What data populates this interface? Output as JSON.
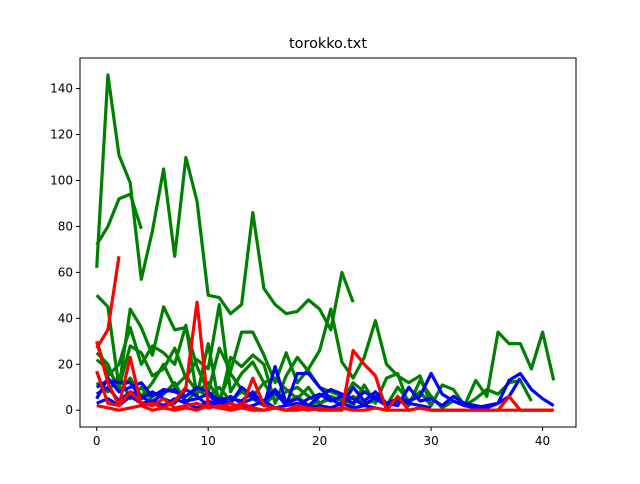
{
  "chart_data": {
    "type": "line",
    "title": "torokko.txt",
    "xlabel": "",
    "ylabel": "",
    "xlim": [
      -1.5,
      43
    ],
    "ylim": [
      -7.3,
      153.3
    ],
    "xticks": [
      0,
      10,
      20,
      30,
      40
    ],
    "yticks": [
      0,
      20,
      40,
      60,
      80,
      100,
      120,
      140
    ],
    "grid": false,
    "legend": "none",
    "colors": {
      "green": "#008000",
      "blue": "#0000ff",
      "red": "#ff0000"
    },
    "series": [
      {
        "color": "green",
        "x": [
          0,
          1,
          2,
          3,
          4
        ],
        "values": [
          72,
          80,
          92,
          94,
          79
        ]
      },
      {
        "color": "green",
        "x": [
          0,
          1,
          2,
          3,
          4,
          5,
          6,
          7,
          8,
          9,
          10,
          11,
          12,
          13,
          14,
          15,
          16,
          17,
          18,
          19,
          20,
          21,
          22,
          23
        ],
        "values": [
          62,
          146,
          111,
          99,
          57,
          78,
          105,
          67,
          110,
          91,
          50,
          49,
          42,
          46,
          86,
          53,
          46,
          42,
          43,
          48,
          44,
          35,
          60,
          47
        ]
      },
      {
        "color": "green",
        "x": [
          0,
          1,
          2,
          3,
          4,
          5,
          6,
          7,
          8,
          9,
          10,
          11,
          12,
          13,
          14,
          15,
          16,
          17,
          18,
          19,
          20,
          21,
          22,
          23,
          24,
          25,
          26,
          27,
          28,
          29,
          30,
          31,
          32,
          33,
          34,
          35,
          36,
          37,
          38,
          39,
          40,
          41
        ],
        "values": [
          50,
          45,
          10,
          44,
          36,
          24,
          45,
          35,
          36,
          19,
          8,
          27,
          17,
          34,
          34,
          24,
          12,
          25,
          12,
          18,
          26,
          44,
          21,
          14,
          23,
          39,
          20,
          15,
          12,
          15,
          2,
          11,
          9,
          2,
          13,
          6,
          34,
          29,
          29,
          18,
          34,
          13
        ]
      },
      {
        "color": "green",
        "x": [
          0,
          1,
          2,
          3,
          4,
          5,
          6,
          7,
          8,
          9,
          10,
          11,
          12,
          13,
          14,
          15,
          16,
          17,
          18,
          19,
          20,
          21,
          22,
          23,
          24,
          25,
          26,
          27,
          28,
          29,
          30,
          31,
          32,
          33,
          34,
          35,
          36,
          37,
          38,
          39
        ],
        "values": [
          30,
          15,
          20,
          36,
          20,
          28,
          25,
          20,
          37,
          6,
          29,
          2,
          23,
          19,
          24,
          20,
          3,
          15,
          23,
          17,
          10,
          8,
          6,
          2,
          11,
          3,
          14,
          16,
          2,
          13,
          6,
          1,
          4,
          2,
          5,
          9,
          7,
          12,
          13,
          4
        ]
      },
      {
        "color": "green",
        "x": [
          0,
          1,
          2,
          3,
          4,
          5,
          6,
          7,
          8,
          9,
          10,
          11,
          12,
          13,
          14,
          15,
          16,
          17,
          18,
          19,
          20,
          21,
          22,
          23,
          24,
          25,
          26,
          27,
          28,
          29,
          30
        ],
        "values": [
          22,
          18,
          10,
          28,
          25,
          15,
          18,
          27,
          14,
          22,
          18,
          46,
          8,
          16,
          21,
          12,
          14,
          9,
          5,
          10,
          3,
          6,
          4,
          12,
          8,
          6,
          2,
          10,
          4,
          8,
          2
        ]
      },
      {
        "color": "green",
        "x": [
          0,
          1,
          2,
          3,
          4,
          5,
          6,
          7,
          8,
          9,
          10,
          11,
          12,
          13,
          14,
          15,
          16,
          17,
          18,
          19,
          20,
          21,
          22,
          23,
          24,
          25
        ],
        "values": [
          25,
          20,
          8,
          14,
          6,
          12,
          20,
          10,
          15,
          8,
          12,
          5,
          16,
          9,
          6,
          12,
          4,
          8,
          10,
          6,
          3,
          5,
          2,
          6,
          3,
          4
        ]
      },
      {
        "color": "green",
        "x": [
          0,
          1,
          2,
          3,
          4,
          5,
          6,
          7,
          8,
          9,
          10,
          11,
          12,
          13,
          14,
          15,
          16,
          17,
          18,
          19,
          20
        ],
        "values": [
          12,
          8,
          15,
          5,
          10,
          4,
          7,
          12,
          3,
          9,
          6,
          10,
          4,
          8,
          5,
          2,
          7,
          3,
          6,
          2,
          4
        ]
      },
      {
        "color": "blue",
        "x": [
          0,
          1,
          2,
          3,
          4,
          5,
          6,
          7,
          8,
          9,
          10,
          11,
          12,
          13,
          14,
          15,
          16,
          17,
          18,
          19,
          20,
          21,
          22,
          23,
          24,
          25,
          26,
          27,
          28,
          29,
          30,
          31,
          32,
          33,
          34,
          35,
          36,
          37,
          38,
          39,
          40,
          41
        ],
        "values": [
          10,
          13,
          12,
          12,
          5,
          8,
          5,
          3,
          9,
          6,
          2,
          5,
          5,
          4,
          8,
          2,
          19,
          3,
          5,
          2,
          6,
          9,
          7,
          5,
          2,
          6,
          3,
          5,
          4,
          6,
          16,
          7,
          4,
          2,
          1,
          2,
          3,
          13,
          16,
          9,
          5,
          2
        ]
      },
      {
        "color": "blue",
        "x": [
          0,
          1,
          2,
          3,
          4,
          5,
          6,
          7,
          8,
          9,
          10,
          11,
          12,
          13,
          14,
          15,
          16,
          17,
          18,
          19,
          20,
          21,
          22,
          23,
          24,
          25,
          26,
          27,
          28,
          29,
          30,
          31,
          32,
          33,
          34,
          35,
          36,
          37,
          38
        ],
        "values": [
          5,
          14,
          8,
          10,
          12,
          6,
          9,
          8,
          6,
          10,
          8,
          4,
          3,
          10,
          6,
          4,
          8,
          2,
          16,
          16,
          10,
          5,
          2,
          10,
          4,
          8,
          3,
          2,
          10,
          4,
          5,
          2,
          6,
          3,
          2,
          1,
          3,
          6,
          14
        ]
      },
      {
        "color": "blue",
        "x": [
          0,
          1,
          2,
          3,
          4,
          5,
          6,
          7,
          8,
          9,
          10,
          11,
          12,
          13,
          14,
          15,
          16,
          17,
          18,
          19,
          20,
          21,
          22,
          23,
          24,
          25,
          26,
          27,
          28,
          29,
          30
        ],
        "values": [
          7,
          10,
          4,
          8,
          6,
          3,
          8,
          9,
          4,
          5,
          7,
          2,
          6,
          3,
          5,
          4,
          9,
          3,
          2,
          5,
          7,
          4,
          6,
          3,
          8,
          5,
          2,
          4,
          3,
          2,
          1
        ]
      },
      {
        "color": "blue",
        "x": [
          0,
          1,
          2,
          3,
          4,
          5,
          6,
          7,
          8,
          9,
          10,
          11,
          12,
          13,
          14,
          15,
          16,
          17,
          18,
          19,
          20,
          21,
          22,
          23,
          24,
          25
        ],
        "values": [
          3,
          5,
          2,
          6,
          3,
          4,
          2,
          5,
          3,
          1,
          4,
          2,
          3,
          1,
          2,
          4,
          1,
          2,
          3,
          1,
          2,
          1,
          3,
          1,
          2,
          1
        ]
      },
      {
        "color": "red",
        "x": [
          0,
          1,
          2
        ],
        "values": [
          27,
          35,
          67
        ]
      },
      {
        "color": "red",
        "x": [
          0,
          1,
          2,
          3,
          4,
          5,
          6,
          7,
          8,
          9,
          10,
          11,
          12,
          13,
          14,
          15,
          16,
          17,
          18,
          19,
          20,
          21,
          22,
          23,
          24,
          25,
          26,
          27,
          28,
          29,
          30,
          31,
          32,
          33,
          34,
          35,
          36,
          37,
          38,
          39,
          40,
          41
        ],
        "values": [
          17,
          3,
          2,
          23,
          2,
          3,
          1,
          4,
          10,
          47,
          2,
          1,
          3,
          1,
          14,
          2,
          1,
          0,
          1,
          0,
          1,
          0,
          0,
          26,
          20,
          15,
          0,
          6,
          0,
          1,
          0,
          0,
          0,
          0,
          0,
          0,
          0,
          6,
          0,
          0,
          0,
          0
        ]
      },
      {
        "color": "red",
        "x": [
          0,
          1,
          2,
          3,
          4,
          5,
          6,
          7,
          8,
          9,
          10,
          11,
          12,
          13,
          14,
          15,
          16,
          17,
          18,
          19,
          20
        ],
        "values": [
          30,
          12,
          2,
          8,
          3,
          2,
          5,
          1,
          2,
          3,
          1,
          2,
          1,
          3,
          1,
          0,
          1,
          0,
          2,
          1,
          0
        ]
      },
      {
        "color": "red",
        "x": [
          0,
          1,
          2,
          3,
          4,
          5,
          6,
          7,
          8,
          9,
          10,
          11,
          12,
          13,
          14,
          15,
          16,
          17,
          18,
          19,
          20,
          21,
          22,
          23,
          24,
          25,
          26,
          27,
          28,
          29,
          30,
          31,
          32,
          33,
          34,
          35,
          36,
          37,
          38,
          39,
          40,
          41
        ],
        "values": [
          2,
          1,
          0,
          1,
          2,
          0,
          1,
          0,
          1,
          0,
          2,
          1,
          0,
          1,
          0,
          0,
          1,
          0,
          0,
          1,
          0,
          0,
          1,
          0,
          0,
          1,
          0,
          0,
          0,
          1,
          0,
          0,
          0,
          0,
          0,
          0,
          0,
          0,
          0,
          0,
          0,
          0
        ]
      }
    ]
  }
}
